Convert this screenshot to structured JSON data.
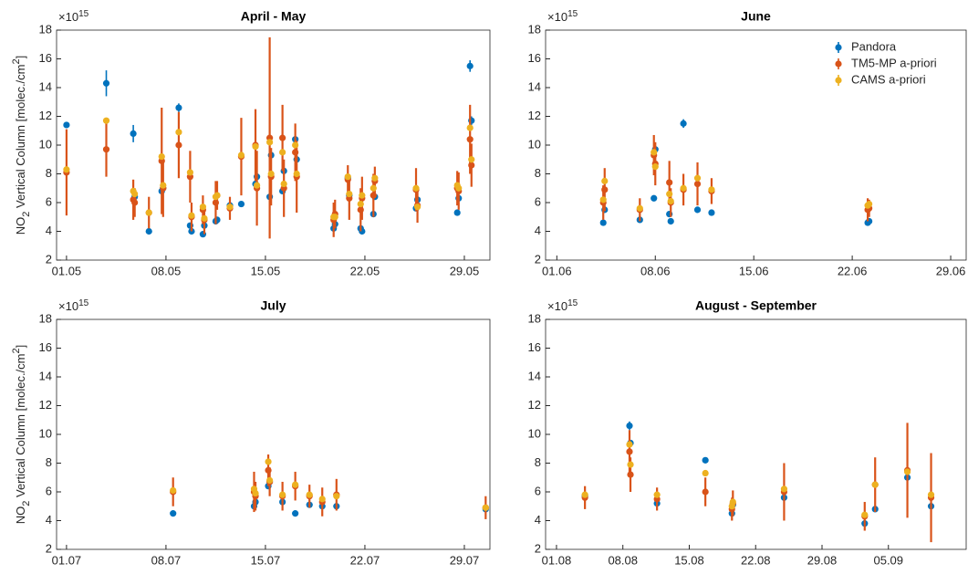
{
  "chart_data": [
    {
      "type": "scatter",
      "title": "April - May",
      "ylabel": [
        "NO",
        "2",
        " Vertical Column [molec./cm",
        "2",
        "]"
      ],
      "y_multiplier": {
        "base": "×10",
        "exponent": "15"
      },
      "xlim": [
        120.3,
        150.8
      ],
      "xticks": [
        {
          "value": 121,
          "label": "01.05"
        },
        {
          "value": 128,
          "label": "08.05"
        },
        {
          "value": 135,
          "label": "15.05"
        },
        {
          "value": 142,
          "label": "22.05"
        },
        {
          "value": 149,
          "label": "29.05"
        }
      ],
      "ylim": [
        2,
        18
      ],
      "yticks": [
        2,
        4,
        6,
        8,
        10,
        12,
        14,
        16,
        18
      ],
      "x": [
        121.0,
        123.8,
        125.7,
        125.8,
        126.8,
        127.7,
        127.8,
        128.9,
        129.7,
        129.8,
        130.6,
        130.7,
        131.5,
        131.6,
        132.5,
        133.3,
        134.3,
        134.4,
        135.3,
        135.4,
        136.2,
        136.3,
        137.1,
        137.2,
        139.8,
        139.9,
        140.8,
        140.9,
        141.7,
        141.8,
        142.6,
        142.7,
        145.6,
        145.7,
        148.5,
        148.6,
        149.4,
        149.5
      ],
      "series": [
        {
          "color": "#0072bd",
          "values": [
            11.4,
            14.3,
            10.8,
            6.4,
            4.0,
            6.8,
            7.0,
            12.6,
            4.4,
            4.0,
            3.8,
            4.4,
            4.7,
            4.8,
            5.8,
            5.9,
            7.3,
            7.8,
            6.4,
            9.3,
            6.8,
            8.2,
            10.4,
            9.0,
            4.2,
            4.5,
            7.7,
            6.5,
            4.2,
            4.0,
            5.2,
            6.4,
            5.6,
            6.2,
            5.3,
            6.3,
            15.5,
            11.7
          ],
          "errors": [
            0.2,
            0.9,
            0.6,
            0.2,
            0.1,
            0.2,
            0.2,
            0.3,
            0.1,
            0.1,
            0.1,
            0.1,
            0.1,
            0.1,
            0.1,
            0.1,
            0.2,
            0.2,
            0.2,
            0.2,
            0.2,
            0.2,
            0.2,
            0.2,
            0.1,
            0.1,
            0.2,
            0.1,
            0.1,
            0.1,
            0.1,
            0.1,
            0.1,
            0.1,
            0.1,
            0.1,
            0.4,
            0.3
          ]
        },
        {
          "color": "#d95319",
          "values": [
            8.1,
            9.7,
            6.2,
            6.0,
            5.3,
            8.9,
            7.0,
            10.0,
            7.8,
            5.0,
            5.5,
            4.8,
            6.0,
            6.5,
            5.6,
            9.2,
            10.0,
            7.0,
            10.5,
            7.8,
            10.5,
            7.0,
            9.5,
            7.8,
            4.8,
            5.2,
            7.6,
            6.3,
            5.5,
            6.3,
            6.5,
            7.5,
            6.9,
            5.8,
            7.0,
            6.8,
            10.4,
            8.6
          ],
          "errors": [
            3.0,
            1.9,
            1.4,
            1.0,
            1.1,
            3.7,
            2.0,
            2.3,
            1.8,
            1.0,
            1.0,
            1.0,
            1.5,
            1.0,
            0.8,
            2.7,
            2.5,
            2.6,
            7.0,
            2.0,
            2.3,
            2.0,
            2.0,
            2.5,
            1.2,
            1.0,
            1.0,
            1.5,
            1.5,
            1.5,
            1.5,
            1.0,
            1.5,
            1.2,
            1.2,
            1.3,
            2.4,
            1.5
          ]
        },
        {
          "color": "#edb120",
          "values": [
            8.3,
            11.7,
            6.8,
            6.6,
            5.3,
            9.2,
            7.2,
            10.9,
            8.1,
            5.1,
            5.7,
            4.9,
            6.4,
            6.5,
            5.7,
            9.3,
            9.9,
            7.2,
            10.2,
            8.0,
            9.5,
            7.3,
            10.0,
            8.0,
            5.0,
            5.0,
            7.8,
            6.6,
            5.9,
            6.5,
            7.0,
            7.7,
            7.0,
            5.7,
            7.2,
            7.0,
            11.2,
            9.0
          ]
        }
      ]
    },
    {
      "type": "scatter",
      "title": "June",
      "y_multiplier": {
        "base": "×10",
        "exponent": "15"
      },
      "legend": "northeast",
      "xlim": [
        151.2,
        181.1
      ],
      "xticks": [
        {
          "value": 152,
          "label": "01.06"
        },
        {
          "value": 159,
          "label": "08.06"
        },
        {
          "value": 166,
          "label": "15.06"
        },
        {
          "value": 173,
          "label": "22.06"
        },
        {
          "value": 180,
          "label": "29.06"
        }
      ],
      "ylim": [
        2,
        18
      ],
      "yticks": [
        2,
        4,
        6,
        8,
        10,
        12,
        14,
        16,
        18
      ],
      "x": [
        155.3,
        155.4,
        157.9,
        158.9,
        159.0,
        160.0,
        160.1,
        161.0,
        162.0,
        163.0,
        174.1,
        174.2
      ],
      "series": [
        {
          "name": "Pandora",
          "color": "#0072bd",
          "values": [
            4.6,
            5.5,
            4.8,
            6.3,
            9.7,
            5.2,
            4.7,
            11.5,
            5.5,
            5.3,
            4.6,
            4.7
          ],
          "errors": [
            0.1,
            0.1,
            0.1,
            0.1,
            0.3,
            0.1,
            0.1,
            0.3,
            0.1,
            0.1,
            0.1,
            0.1
          ]
        },
        {
          "name": "TM5-MP a-priori",
          "color": "#d95319",
          "values": [
            6.0,
            6.9,
            5.5,
            9.3,
            8.7,
            7.4,
            6.0,
            6.9,
            7.3,
            6.8,
            5.5,
            5.6
          ],
          "errors": [
            1.2,
            1.5,
            0.8,
            1.4,
            1.5,
            1.5,
            1.0,
            1.1,
            1.5,
            0.9,
            0.8,
            0.6
          ]
        },
        {
          "name": "CAMS a-priori",
          "color": "#edb120",
          "values": [
            6.2,
            7.5,
            5.6,
            9.5,
            8.5,
            6.6,
            6.1,
            7.0,
            7.7,
            6.9,
            5.8,
            5.9
          ]
        }
      ]
    },
    {
      "type": "scatter",
      "title": "July",
      "ylabel": [
        "NO",
        "2",
        " Vertical Column [molec./cm",
        "2",
        "]"
      ],
      "y_multiplier": {
        "base": "×10",
        "exponent": "15"
      },
      "xlim": [
        181.3,
        211.8
      ],
      "xticks": [
        {
          "value": 182,
          "label": "01.07"
        },
        {
          "value": 189,
          "label": "08.07"
        },
        {
          "value": 196,
          "label": "15.07"
        },
        {
          "value": 203,
          "label": "22.07"
        },
        {
          "value": 210,
          "label": "29.07"
        }
      ],
      "ylim": [
        2,
        18
      ],
      "yticks": [
        2,
        4,
        6,
        8,
        10,
        12,
        14,
        16,
        18
      ],
      "x": [
        189.5,
        195.2,
        195.3,
        196.2,
        196.3,
        197.2,
        198.1,
        199.1,
        200.0,
        201.0,
        211.5
      ],
      "series": [
        {
          "color": "#0072bd",
          "values": [
            4.5,
            5.0,
            5.3,
            6.4,
            6.7,
            5.3,
            4.5,
            5.1,
            5.0,
            5.0,
            4.8
          ],
          "errors": [
            0.1,
            0.1,
            0.1,
            0.1,
            0.1,
            0.1,
            0.1,
            0.1,
            0.1,
            0.1,
            0.1
          ]
        },
        {
          "color": "#d95319",
          "values": [
            6.0,
            6.0,
            5.7,
            7.5,
            6.7,
            5.7,
            6.4,
            5.7,
            5.3,
            5.8,
            4.9
          ],
          "errors": [
            1.0,
            1.4,
            1.0,
            1.1,
            1.0,
            1.0,
            1.0,
            0.8,
            1.0,
            1.1,
            0.8
          ]
        },
        {
          "color": "#edb120",
          "values": [
            6.1,
            6.2,
            5.9,
            8.1,
            6.8,
            5.8,
            6.5,
            5.8,
            5.5,
            5.7,
            4.9
          ]
        }
      ]
    },
    {
      "type": "scatter",
      "title": "August - September",
      "y_multiplier": {
        "base": "×10",
        "exponent": "15"
      },
      "xlim": [
        211.85,
        256.2
      ],
      "xticks": [
        {
          "value": 213,
          "label": "01.08"
        },
        {
          "value": 220,
          "label": "08.08"
        },
        {
          "value": 227,
          "label": "15.08"
        },
        {
          "value": 234,
          "label": "22.08"
        },
        {
          "value": 241,
          "label": "29.08"
        },
        {
          "value": 248,
          "label": "05.09"
        }
      ],
      "ylim": [
        2,
        18
      ],
      "yticks": [
        2,
        4,
        6,
        8,
        10,
        12,
        14,
        16,
        18
      ],
      "x": [
        216.0,
        220.7,
        220.8,
        223.6,
        228.7,
        231.5,
        231.6,
        237.0,
        245.5,
        246.6,
        250.0,
        252.5
      ],
      "series": [
        {
          "color": "#0072bd",
          "values": [
            5.7,
            10.6,
            9.4,
            5.2,
            8.2,
            4.5,
            5.1,
            5.6,
            3.8,
            4.8,
            7.0,
            5.0
          ],
          "errors": [
            0.1,
            0.3,
            0.2,
            0.1,
            0.2,
            0.1,
            0.1,
            0.1,
            0.1,
            0.1,
            0.2,
            0.1
          ]
        },
        {
          "color": "#d95319",
          "values": [
            5.6,
            8.8,
            7.2,
            5.5,
            6.0,
            4.8,
            5.2,
            6.0,
            4.3,
            6.5,
            7.5,
            5.6
          ],
          "errors": [
            0.8,
            1.5,
            1.2,
            0.8,
            1.0,
            0.8,
            0.9,
            2.0,
            1.0,
            1.9,
            3.3,
            3.1
          ]
        },
        {
          "color": "#edb120",
          "values": [
            5.8,
            9.3,
            7.9,
            5.8,
            7.3,
            5.0,
            5.3,
            6.2,
            4.4,
            6.5,
            7.4,
            5.8
          ]
        }
      ]
    }
  ]
}
